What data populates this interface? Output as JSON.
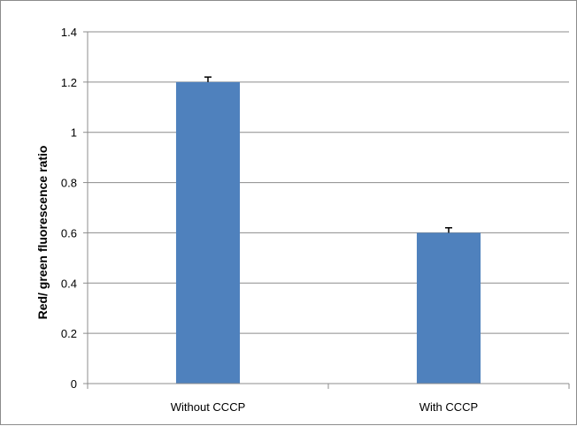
{
  "chart_data": {
    "type": "bar",
    "categories": [
      "Without CCCP",
      "With CCCP"
    ],
    "values": [
      1.2,
      0.6
    ],
    "errors": [
      0.02,
      0.02
    ],
    "title": "",
    "xlabel": "",
    "ylabel": "Red/ green fluorescence ratio",
    "ylim": [
      0,
      1.4
    ],
    "yticks": [
      0,
      0.2,
      0.4,
      0.6,
      0.8,
      1,
      1.2,
      1.4
    ],
    "ytick_labels": [
      "0",
      "0.2",
      "0.4",
      "0.6",
      "0.8",
      "1",
      "1.2",
      "1.4"
    ],
    "grid": true,
    "legend": "none",
    "colors": {
      "bar": "#4f81bd",
      "grid": "#8c8c8c",
      "axis": "#8c8c8c",
      "error": "#000000"
    }
  }
}
